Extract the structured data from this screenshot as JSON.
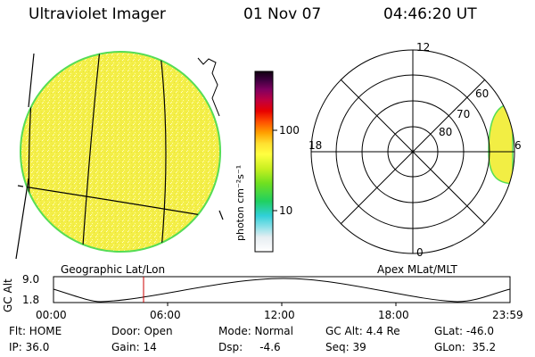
{
  "header": {
    "instrument": "Ultraviolet Imager",
    "date": "01 Nov 07",
    "time": "04:46:20 UT"
  },
  "colorbar": {
    "label": "photon cm⁻²s⁻¹",
    "ticks": [
      "100",
      "10"
    ]
  },
  "polar_plot": {
    "mlt_labels": [
      "12",
      "18",
      "6",
      "0"
    ],
    "mlat_labels": [
      "60",
      "70",
      "80"
    ]
  },
  "panel_labels": {
    "left": "Geographic Lat/Lon",
    "right": "Apex MLat/MLT"
  },
  "altitude_plot": {
    "axis_label": "GC Alt",
    "y_top": "9.0",
    "y_bottom": "1.8",
    "x_ticks": [
      "00:00",
      "06:00",
      "12:00",
      "18:00",
      "23:59"
    ]
  },
  "info": {
    "flt": "Flt: HOME",
    "ip": "IP: 36.0",
    "door": "Door: Open",
    "gain": "Gain: 14",
    "mode": "Mode: Normal",
    "dsp": "Dsp:     -4.6",
    "gc_alt": "GC Alt: 4.4 Re",
    "seq": "Seq: 39",
    "glat": "GLat: -46.0",
    "glon": "GLon:  35.2"
  },
  "colors": {
    "disk_fill": "#f2ee44",
    "disk_edge": "#55dd55",
    "marker": "#cc0000"
  }
}
